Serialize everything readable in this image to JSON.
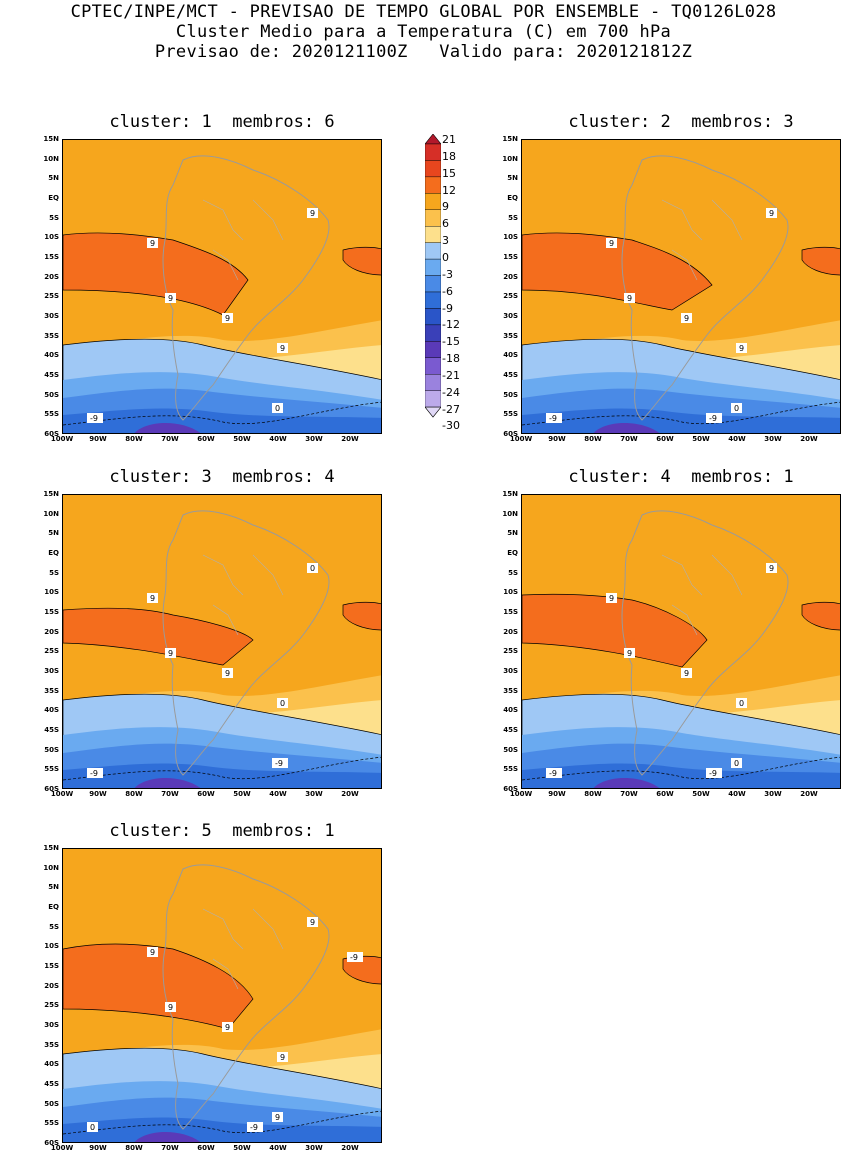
{
  "header": {
    "line1": "CPTEC/INPE/MCT - PREVISAO DE TEMPO GLOBAL POR ENSEMBLE - TQ0126L028",
    "line2": "Cluster Medio para a Temperatura (C) em 700 hPa",
    "line3": "Previsao de: 2020121100Z   Valido para: 2020121812Z"
  },
  "panels": [
    {
      "title": "cluster: 1  membros: 6",
      "contour_labels": [
        "9",
        "9",
        "9",
        "9",
        "9",
        "0",
        "-9"
      ]
    },
    {
      "title": "cluster: 2  membros: 3",
      "contour_labels": [
        "9",
        "9",
        "9",
        "9",
        "9",
        "0",
        "-9",
        "-9"
      ]
    },
    {
      "title": "cluster: 3  membros: 4",
      "contour_labels": [
        "9",
        "9",
        "9",
        "0",
        "0",
        "-9",
        "-9"
      ]
    },
    {
      "title": "cluster: 4  membros: 1",
      "contour_labels": [
        "9",
        "9",
        "9",
        "9",
        "0",
        "0",
        "-9",
        "-9"
      ]
    },
    {
      "title": "cluster: 5  membros: 1",
      "contour_labels": [
        "9",
        "9",
        "9",
        "9",
        "9",
        "9",
        "0",
        "-9",
        "-9"
      ]
    }
  ],
  "axes": {
    "y_ticks": [
      "15N",
      "10N",
      "5N",
      "EQ",
      "5S",
      "10S",
      "15S",
      "20S",
      "25S",
      "30S",
      "35S",
      "40S",
      "45S",
      "50S",
      "55S",
      "60S"
    ],
    "x_ticks": [
      "100W",
      "90W",
      "80W",
      "70W",
      "60W",
      "50W",
      "40W",
      "30W",
      "20W"
    ]
  },
  "colorbar": {
    "labels": [
      "21",
      "18",
      "15",
      "12",
      "9",
      "6",
      "3",
      "0",
      "-3",
      "-6",
      "-9",
      "-12",
      "-15",
      "-18",
      "-21",
      "-24",
      "-27",
      "-30"
    ],
    "colors": [
      "#b2182b",
      "#d62f27",
      "#e8461e",
      "#f46d1d",
      "#f6a61d",
      "#fbc14c",
      "#fde08c",
      "#9fc8f5",
      "#6aaaf0",
      "#4a8ae6",
      "#2f6ed8",
      "#2a55c8",
      "#3a40b8",
      "#5a3ab8",
      "#7a5ad0",
      "#9a82de",
      "#bcaaea",
      "#e0d8f6"
    ]
  },
  "legend_labels": {
    "warm": "#f46d1d",
    "orange": "#f6a61d",
    "light_orange": "#fbc14c",
    "pale": "#fde08c",
    "lightblue": "#9fc8f5",
    "blue": "#6aaaf0",
    "midblue": "#4a8ae6",
    "deepblue": "#2f6ed8",
    "navy": "#2a55c8",
    "purple": "#5a3ab8"
  }
}
